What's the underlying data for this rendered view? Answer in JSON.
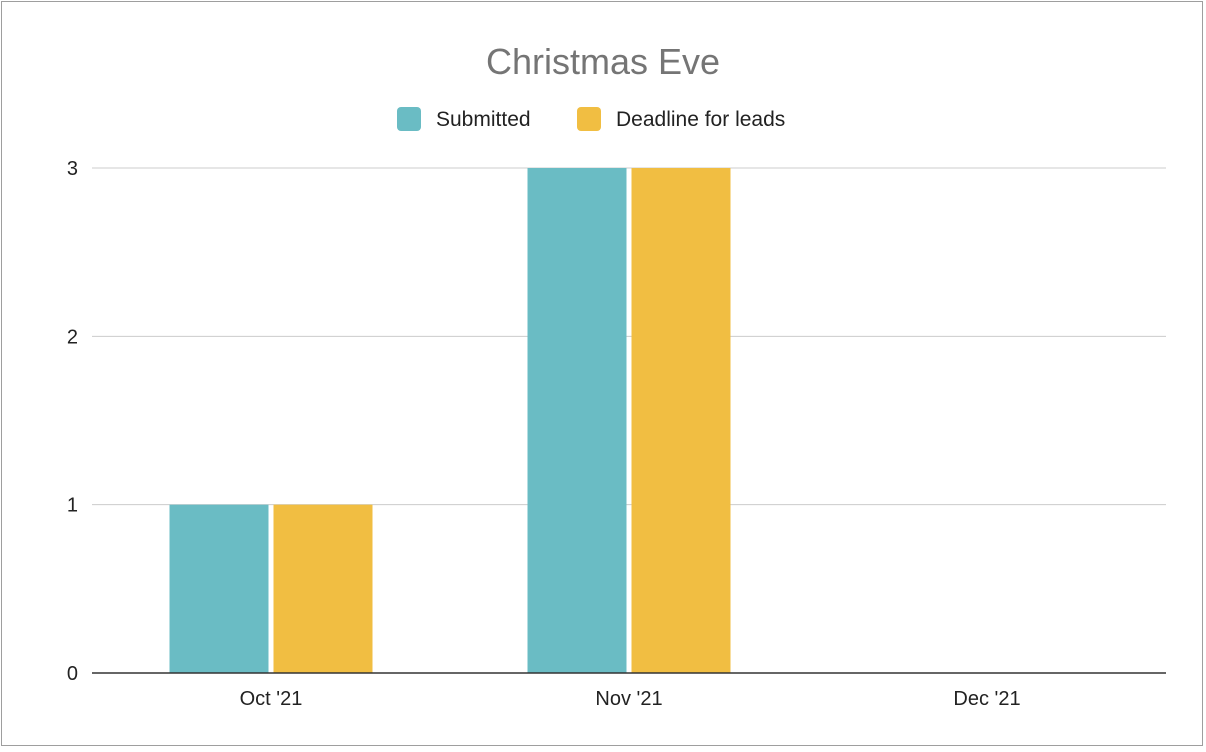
{
  "chart_data": {
    "type": "bar",
    "title": "Christmas Eve",
    "categories": [
      "Oct '21",
      "Nov '21",
      "Dec '21"
    ],
    "series": [
      {
        "name": "Submitted",
        "values": [
          1,
          3,
          0
        ],
        "color": "#6abcc4"
      },
      {
        "name": "Deadline for leads",
        "values": [
          1,
          3,
          0
        ],
        "color": "#f1be42"
      }
    ],
    "yticks": [
      0,
      1,
      2,
      3
    ],
    "ylim": [
      0,
      3
    ],
    "grid": true,
    "legend_position": "top-center",
    "xlabel": "",
    "ylabel": ""
  }
}
